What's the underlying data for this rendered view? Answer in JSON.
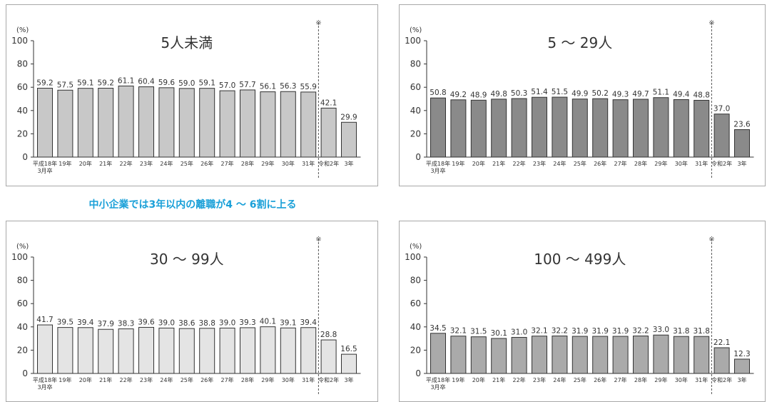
{
  "caption": "中小企業では3年以内の離職が4 ～ 6割に上る",
  "chart_data": [
    {
      "type": "bar",
      "title": "5人未満",
      "yunit": "(%)",
      "ylim": [
        0,
        100
      ],
      "yticks": [
        0,
        20,
        40,
        60,
        80,
        100
      ],
      "categories": [
        "平成18年\n3月卒",
        "19年",
        "20年",
        "21年",
        "22年",
        "23年",
        "24年",
        "25年",
        "26年",
        "27年",
        "28年",
        "29年",
        "30年",
        "31年",
        "令和2年",
        "3年"
      ],
      "values": [
        59.2,
        57.5,
        59.1,
        59.2,
        61.1,
        60.4,
        59.6,
        59.0,
        59.1,
        57.0,
        57.7,
        56.1,
        56.3,
        55.9,
        42.1,
        29.9
      ],
      "note_mark": "※",
      "bar_color": "#c8c8c8"
    },
    {
      "type": "bar",
      "title": "5 ～ 29人",
      "yunit": "(%)",
      "ylim": [
        0,
        100
      ],
      "yticks": [
        0,
        20,
        40,
        60,
        80,
        100
      ],
      "categories": [
        "平成18年\n3月卒",
        "19年",
        "20年",
        "21年",
        "22年",
        "23年",
        "24年",
        "25年",
        "26年",
        "27年",
        "28年",
        "29年",
        "30年",
        "31年",
        "令和2年",
        "3年"
      ],
      "values": [
        50.8,
        49.2,
        48.9,
        49.8,
        50.3,
        51.4,
        51.5,
        49.9,
        50.2,
        49.3,
        49.7,
        51.1,
        49.4,
        48.8,
        37.0,
        23.6
      ],
      "note_mark": "※",
      "bar_color": "#8a8a8a"
    },
    {
      "type": "bar",
      "title": "30 ～ 99人",
      "yunit": "(%)",
      "ylim": [
        0,
        100
      ],
      "yticks": [
        0,
        20,
        40,
        60,
        80,
        100
      ],
      "categories": [
        "平成18年\n3月卒",
        "19年",
        "20年",
        "21年",
        "22年",
        "23年",
        "24年",
        "25年",
        "26年",
        "27年",
        "28年",
        "29年",
        "30年",
        "31年",
        "令和2年",
        "3年"
      ],
      "values": [
        41.7,
        39.5,
        39.4,
        37.9,
        38.3,
        39.6,
        39.0,
        38.6,
        38.8,
        39.0,
        39.3,
        40.1,
        39.1,
        39.4,
        28.8,
        16.5
      ],
      "note_mark": "※",
      "bar_color": "#e4e4e4"
    },
    {
      "type": "bar",
      "title": "100 ～ 499人",
      "yunit": "(%)",
      "ylim": [
        0,
        100
      ],
      "yticks": [
        0,
        20,
        40,
        60,
        80,
        100
      ],
      "categories": [
        "平成18年\n3月卒",
        "19年",
        "20年",
        "21年",
        "22年",
        "23年",
        "24年",
        "25年",
        "26年",
        "27年",
        "28年",
        "29年",
        "30年",
        "31年",
        "令和2年",
        "3年"
      ],
      "values": [
        34.5,
        32.1,
        31.5,
        30.1,
        31.0,
        32.1,
        32.2,
        31.9,
        31.9,
        31.9,
        32.2,
        33.0,
        31.8,
        31.8,
        22.1,
        12.3
      ],
      "note_mark": "※",
      "bar_color": "#aaaaaa"
    }
  ]
}
